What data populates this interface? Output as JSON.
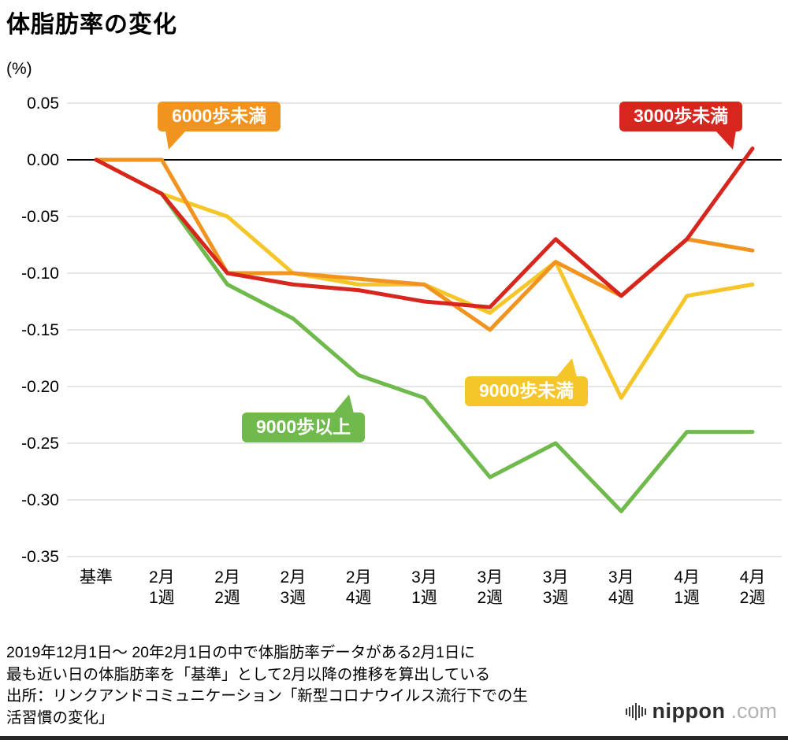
{
  "title": "体脂肪率の変化",
  "y_axis_unit": "(%)",
  "chart_data": {
    "type": "line",
    "title": "体脂肪率の変化",
    "ylabel": "(%)",
    "categories": [
      "基準",
      "2月\n1週",
      "2月\n2週",
      "2月\n3週",
      "2月\n4週",
      "3月\n1週",
      "3月\n2週",
      "3月\n3週",
      "3月\n4週",
      "4月\n1週",
      "4月\n2週"
    ],
    "ylim": [
      -0.35,
      0.05
    ],
    "yticks": [
      0.05,
      0,
      -0.05,
      -0.1,
      -0.15,
      -0.2,
      -0.25,
      -0.3,
      -0.35
    ],
    "grid": true,
    "grid_color": "#cccccc",
    "zero_line_color": "#000000",
    "legend_position": "inline-callouts",
    "series": [
      {
        "name": "3000歩未満",
        "color": "#d7261e",
        "values": [
          0,
          -0.03,
          -0.1,
          -0.11,
          -0.115,
          -0.125,
          -0.13,
          -0.07,
          -0.12,
          -0.07,
          0.01
        ]
      },
      {
        "name": "6000歩未満",
        "color": "#f0931f",
        "values": [
          0,
          0,
          -0.1,
          -0.1,
          -0.105,
          -0.11,
          -0.15,
          -0.09,
          -0.12,
          -0.07,
          -0.08
        ]
      },
      {
        "name": "9000歩未満",
        "color": "#f4c62a",
        "values": [
          0,
          -0.03,
          -0.05,
          -0.1,
          -0.11,
          -0.11,
          -0.135,
          -0.09,
          -0.21,
          -0.12,
          -0.11
        ]
      },
      {
        "name": "9000歩以上",
        "color": "#70b94c",
        "values": [
          0,
          -0.03,
          -0.11,
          -0.14,
          -0.19,
          -0.21,
          -0.28,
          -0.25,
          -0.31,
          -0.24,
          -0.24
        ]
      }
    ]
  },
  "annotations": [
    {
      "label": "6000歩未満",
      "color": "#f0931f"
    },
    {
      "label": "3000歩未満",
      "color": "#d7261e"
    },
    {
      "label": "9000歩未満",
      "color": "#f4c62a"
    },
    {
      "label": "9000歩以上",
      "color": "#70b94c"
    }
  ],
  "footer": {
    "lines": [
      "2019年12月1日〜 20年2月1日の中で体脂肪率データがある2月1日に",
      "最も近い日の体脂肪率を「基準」として2月以降の推移を算出している",
      "出所：リンクアンドコミュニケーション「新型コロナウイルス流行下での生",
      "活習慣の変化」"
    ]
  },
  "logo": {
    "text": "nippon",
    "tld": ".com"
  }
}
